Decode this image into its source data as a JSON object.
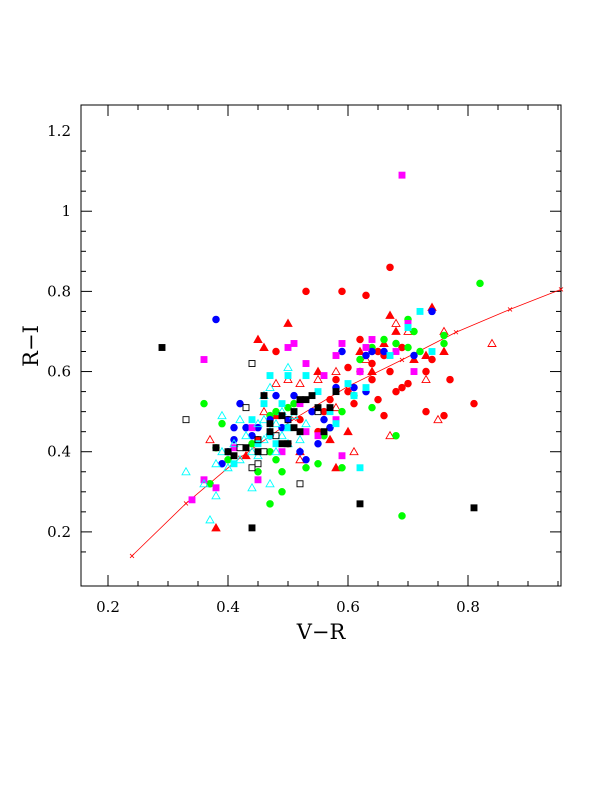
{
  "chart_data": {
    "type": "scatter",
    "title": "",
    "xlabel": "V−R",
    "ylabel": "R−I",
    "xlim": [
      0.155,
      0.955
    ],
    "ylim": [
      0.065,
      1.265
    ],
    "xticks": [
      {
        "v": 0.2,
        "label": "0.2"
      },
      {
        "v": 0.4,
        "label": "0.4"
      },
      {
        "v": 0.6,
        "label": "0.6"
      },
      {
        "v": 0.8,
        "label": "0.8"
      }
    ],
    "yticks": [
      {
        "v": 0.2,
        "label": "0.2"
      },
      {
        "v": 0.4,
        "label": "0.4"
      },
      {
        "v": 0.6,
        "label": "0.6"
      },
      {
        "v": 0.8,
        "label": "0.8"
      },
      {
        "v": 1.0,
        "label": "1"
      },
      {
        "v": 1.2,
        "label": "1.2"
      }
    ],
    "grid": false,
    "legend": "none",
    "fit_curve": {
      "color": "#ff0000",
      "x": [
        0.24,
        0.33,
        0.42,
        0.51,
        0.6,
        0.69,
        0.78,
        0.87,
        0.955
      ],
      "y": [
        0.14,
        0.271,
        0.385,
        0.482,
        0.563,
        0.629,
        0.698,
        0.755,
        0.805
      ]
    },
    "series": [
      {
        "marker": "circle",
        "filled": true,
        "color": "#ff0000",
        "points": [
          [
            0.53,
            0.8
          ],
          [
            0.59,
            0.8
          ],
          [
            0.63,
            0.79
          ],
          [
            0.67,
            0.86
          ],
          [
            0.6,
            0.61
          ],
          [
            0.62,
            0.68
          ],
          [
            0.65,
            0.65
          ],
          [
            0.66,
            0.64
          ],
          [
            0.64,
            0.58
          ],
          [
            0.67,
            0.6
          ],
          [
            0.68,
            0.55
          ],
          [
            0.7,
            0.57
          ],
          [
            0.73,
            0.6
          ],
          [
            0.74,
            0.63
          ],
          [
            0.77,
            0.58
          ],
          [
            0.73,
            0.5
          ],
          [
            0.76,
            0.49
          ],
          [
            0.81,
            0.52
          ],
          [
            0.66,
            0.49
          ],
          [
            0.61,
            0.52
          ],
          [
            0.55,
            0.45
          ],
          [
            0.5,
            0.42
          ],
          [
            0.48,
            0.65
          ],
          [
            0.58,
            0.58
          ],
          [
            0.62,
            0.6
          ],
          [
            0.64,
            0.62
          ],
          [
            0.69,
            0.66
          ],
          [
            0.56,
            0.5
          ],
          [
            0.52,
            0.48
          ],
          [
            0.57,
            0.53
          ],
          [
            0.6,
            0.55
          ],
          [
            0.65,
            0.53
          ],
          [
            0.47,
            0.44
          ],
          [
            0.45,
            0.43
          ],
          [
            0.69,
            0.56
          ]
        ]
      },
      {
        "marker": "triangle",
        "filled": true,
        "color": "#ff0000",
        "points": [
          [
            0.45,
            0.68
          ],
          [
            0.5,
            0.72
          ],
          [
            0.74,
            0.76
          ],
          [
            0.76,
            0.65
          ],
          [
            0.73,
            0.64
          ],
          [
            0.68,
            0.7
          ],
          [
            0.67,
            0.74
          ],
          [
            0.62,
            0.65
          ],
          [
            0.38,
            0.21
          ],
          [
            0.43,
            0.39
          ],
          [
            0.6,
            0.45
          ],
          [
            0.57,
            0.43
          ],
          [
            0.52,
            0.4
          ],
          [
            0.55,
            0.6
          ],
          [
            0.48,
            0.49
          ],
          [
            0.66,
            0.67
          ],
          [
            0.71,
            0.63
          ],
          [
            0.64,
            0.6
          ],
          [
            0.46,
            0.66
          ],
          [
            0.58,
            0.36
          ]
        ]
      },
      {
        "marker": "triangle",
        "filled": false,
        "color": "#ff0000",
        "points": [
          [
            0.84,
            0.67
          ],
          [
            0.75,
            0.48
          ],
          [
            0.73,
            0.58
          ],
          [
            0.67,
            0.44
          ],
          [
            0.61,
            0.4
          ],
          [
            0.58,
            0.51
          ],
          [
            0.52,
            0.57
          ],
          [
            0.48,
            0.57
          ],
          [
            0.46,
            0.5
          ],
          [
            0.52,
            0.38
          ],
          [
            0.58,
            0.6
          ],
          [
            0.68,
            0.72
          ],
          [
            0.7,
            0.7
          ],
          [
            0.55,
            0.58
          ],
          [
            0.63,
            0.63
          ],
          [
            0.37,
            0.43
          ],
          [
            0.5,
            0.58
          ],
          [
            0.76,
            0.7
          ]
        ]
      },
      {
        "marker": "circle",
        "filled": true,
        "color": "#00ff00",
        "points": [
          [
            0.36,
            0.52
          ],
          [
            0.82,
            0.82
          ],
          [
            0.7,
            0.73
          ],
          [
            0.71,
            0.7
          ],
          [
            0.66,
            0.68
          ],
          [
            0.68,
            0.67
          ],
          [
            0.7,
            0.66
          ],
          [
            0.72,
            0.65
          ],
          [
            0.76,
            0.67
          ],
          [
            0.76,
            0.69
          ],
          [
            0.69,
            0.24
          ],
          [
            0.68,
            0.44
          ],
          [
            0.64,
            0.51
          ],
          [
            0.61,
            0.54
          ],
          [
            0.59,
            0.5
          ],
          [
            0.57,
            0.46
          ],
          [
            0.55,
            0.37
          ],
          [
            0.53,
            0.36
          ],
          [
            0.49,
            0.35
          ],
          [
            0.49,
            0.3
          ],
          [
            0.47,
            0.27
          ],
          [
            0.45,
            0.35
          ],
          [
            0.4,
            0.38
          ],
          [
            0.38,
            0.41
          ],
          [
            0.37,
            0.32
          ],
          [
            0.39,
            0.47
          ],
          [
            0.47,
            0.49
          ],
          [
            0.48,
            0.5
          ],
          [
            0.5,
            0.51
          ],
          [
            0.51,
            0.52
          ],
          [
            0.56,
            0.44
          ],
          [
            0.59,
            0.36
          ],
          [
            0.47,
            0.4
          ],
          [
            0.48,
            0.38
          ],
          [
            0.44,
            0.42
          ],
          [
            0.62,
            0.63
          ],
          [
            0.64,
            0.66
          ]
        ]
      },
      {
        "marker": "circle",
        "filled": true,
        "color": "#0000ff",
        "points": [
          [
            0.38,
            0.73
          ],
          [
            0.42,
            0.52
          ],
          [
            0.41,
            0.46
          ],
          [
            0.43,
            0.46
          ],
          [
            0.44,
            0.44
          ],
          [
            0.41,
            0.43
          ],
          [
            0.4,
            0.4
          ],
          [
            0.39,
            0.37
          ],
          [
            0.45,
            0.46
          ],
          [
            0.47,
            0.48
          ],
          [
            0.48,
            0.54
          ],
          [
            0.51,
            0.54
          ],
          [
            0.54,
            0.5
          ],
          [
            0.52,
            0.4
          ],
          [
            0.53,
            0.38
          ],
          [
            0.55,
            0.42
          ],
          [
            0.56,
            0.48
          ],
          [
            0.57,
            0.46
          ],
          [
            0.59,
            0.65
          ],
          [
            0.63,
            0.64
          ],
          [
            0.64,
            0.65
          ],
          [
            0.66,
            0.65
          ],
          [
            0.71,
            0.64
          ],
          [
            0.74,
            0.75
          ],
          [
            0.63,
            0.55
          ],
          [
            0.61,
            0.56
          ],
          [
            0.58,
            0.56
          ],
          [
            0.5,
            0.48
          ],
          [
            0.49,
            0.46
          ],
          [
            0.47,
            0.44
          ]
        ]
      },
      {
        "marker": "square",
        "filled": true,
        "color": "#ff00ff",
        "points": [
          [
            0.69,
            1.09
          ],
          [
            0.7,
            0.72
          ],
          [
            0.59,
            0.67
          ],
          [
            0.51,
            0.67
          ],
          [
            0.5,
            0.66
          ],
          [
            0.36,
            0.63
          ],
          [
            0.34,
            0.28
          ],
          [
            0.36,
            0.33
          ],
          [
            0.38,
            0.31
          ],
          [
            0.44,
            0.46
          ],
          [
            0.45,
            0.33
          ],
          [
            0.49,
            0.4
          ],
          [
            0.53,
            0.45
          ],
          [
            0.56,
            0.59
          ],
          [
            0.58,
            0.64
          ],
          [
            0.62,
            0.6
          ],
          [
            0.64,
            0.68
          ],
          [
            0.68,
            0.65
          ],
          [
            0.71,
            0.6
          ],
          [
            0.58,
            0.48
          ],
          [
            0.59,
            0.39
          ],
          [
            0.55,
            0.44
          ],
          [
            0.52,
            0.52
          ],
          [
            0.53,
            0.62
          ],
          [
            0.63,
            0.66
          ],
          [
            0.41,
            0.41
          ]
        ]
      },
      {
        "marker": "square",
        "filled": true,
        "color": "#00ffff",
        "points": [
          [
            0.47,
            0.59
          ],
          [
            0.5,
            0.59
          ],
          [
            0.53,
            0.59
          ],
          [
            0.55,
            0.55
          ],
          [
            0.57,
            0.5
          ],
          [
            0.61,
            0.54
          ],
          [
            0.63,
            0.56
          ],
          [
            0.67,
            0.64
          ],
          [
            0.7,
            0.71
          ],
          [
            0.72,
            0.75
          ],
          [
            0.74,
            0.65
          ],
          [
            0.62,
            0.36
          ],
          [
            0.58,
            0.47
          ],
          [
            0.5,
            0.46
          ],
          [
            0.47,
            0.44
          ],
          [
            0.48,
            0.42
          ],
          [
            0.45,
            0.42
          ],
          [
            0.41,
            0.37
          ],
          [
            0.46,
            0.52
          ],
          [
            0.49,
            0.52
          ],
          [
            0.51,
            0.5
          ],
          [
            0.44,
            0.48
          ],
          [
            0.6,
            0.57
          ]
        ]
      },
      {
        "marker": "triangle",
        "filled": false,
        "color": "#00ffff",
        "points": [
          [
            0.33,
            0.35
          ],
          [
            0.37,
            0.23
          ],
          [
            0.38,
            0.29
          ],
          [
            0.36,
            0.32
          ],
          [
            0.38,
            0.37
          ],
          [
            0.39,
            0.4
          ],
          [
            0.4,
            0.36
          ],
          [
            0.41,
            0.42
          ],
          [
            0.42,
            0.38
          ],
          [
            0.43,
            0.44
          ],
          [
            0.44,
            0.4
          ],
          [
            0.45,
            0.47
          ],
          [
            0.46,
            0.43
          ],
          [
            0.47,
            0.45
          ],
          [
            0.48,
            0.47
          ],
          [
            0.49,
            0.44
          ],
          [
            0.5,
            0.46
          ],
          [
            0.51,
            0.49
          ],
          [
            0.52,
            0.43
          ],
          [
            0.46,
            0.54
          ],
          [
            0.47,
            0.56
          ],
          [
            0.5,
            0.61
          ],
          [
            0.44,
            0.31
          ],
          [
            0.47,
            0.32
          ],
          [
            0.42,
            0.48
          ],
          [
            0.39,
            0.49
          ],
          [
            0.48,
            0.4
          ],
          [
            0.5,
            0.42
          ],
          [
            0.53,
            0.47
          ],
          [
            0.45,
            0.39
          ],
          [
            0.46,
            0.48
          ],
          [
            0.49,
            0.5
          ]
        ]
      },
      {
        "marker": "square",
        "filled": true,
        "color": "#000000",
        "points": [
          [
            0.29,
            0.66
          ],
          [
            0.44,
            0.21
          ],
          [
            0.62,
            0.27
          ],
          [
            0.81,
            0.26
          ],
          [
            0.46,
            0.54
          ],
          [
            0.47,
            0.47
          ],
          [
            0.49,
            0.49
          ],
          [
            0.51,
            0.5
          ],
          [
            0.52,
            0.53
          ],
          [
            0.53,
            0.53
          ],
          [
            0.54,
            0.54
          ],
          [
            0.55,
            0.51
          ],
          [
            0.56,
            0.45
          ],
          [
            0.57,
            0.51
          ],
          [
            0.58,
            0.55
          ],
          [
            0.51,
            0.46
          ],
          [
            0.52,
            0.45
          ],
          [
            0.5,
            0.42
          ],
          [
            0.49,
            0.42
          ],
          [
            0.47,
            0.45
          ],
          [
            0.45,
            0.4
          ],
          [
            0.43,
            0.41
          ],
          [
            0.41,
            0.39
          ],
          [
            0.4,
            0.4
          ],
          [
            0.38,
            0.41
          ]
        ]
      },
      {
        "marker": "square",
        "filled": false,
        "color": "#000000",
        "points": [
          [
            0.33,
            0.48
          ],
          [
            0.44,
            0.62
          ],
          [
            0.43,
            0.51
          ],
          [
            0.45,
            0.43
          ],
          [
            0.44,
            0.36
          ],
          [
            0.52,
            0.32
          ],
          [
            0.46,
            0.4
          ],
          [
            0.48,
            0.44
          ],
          [
            0.5,
            0.48
          ],
          [
            0.55,
            0.5
          ],
          [
            0.42,
            0.41
          ],
          [
            0.45,
            0.37
          ]
        ]
      }
    ]
  }
}
